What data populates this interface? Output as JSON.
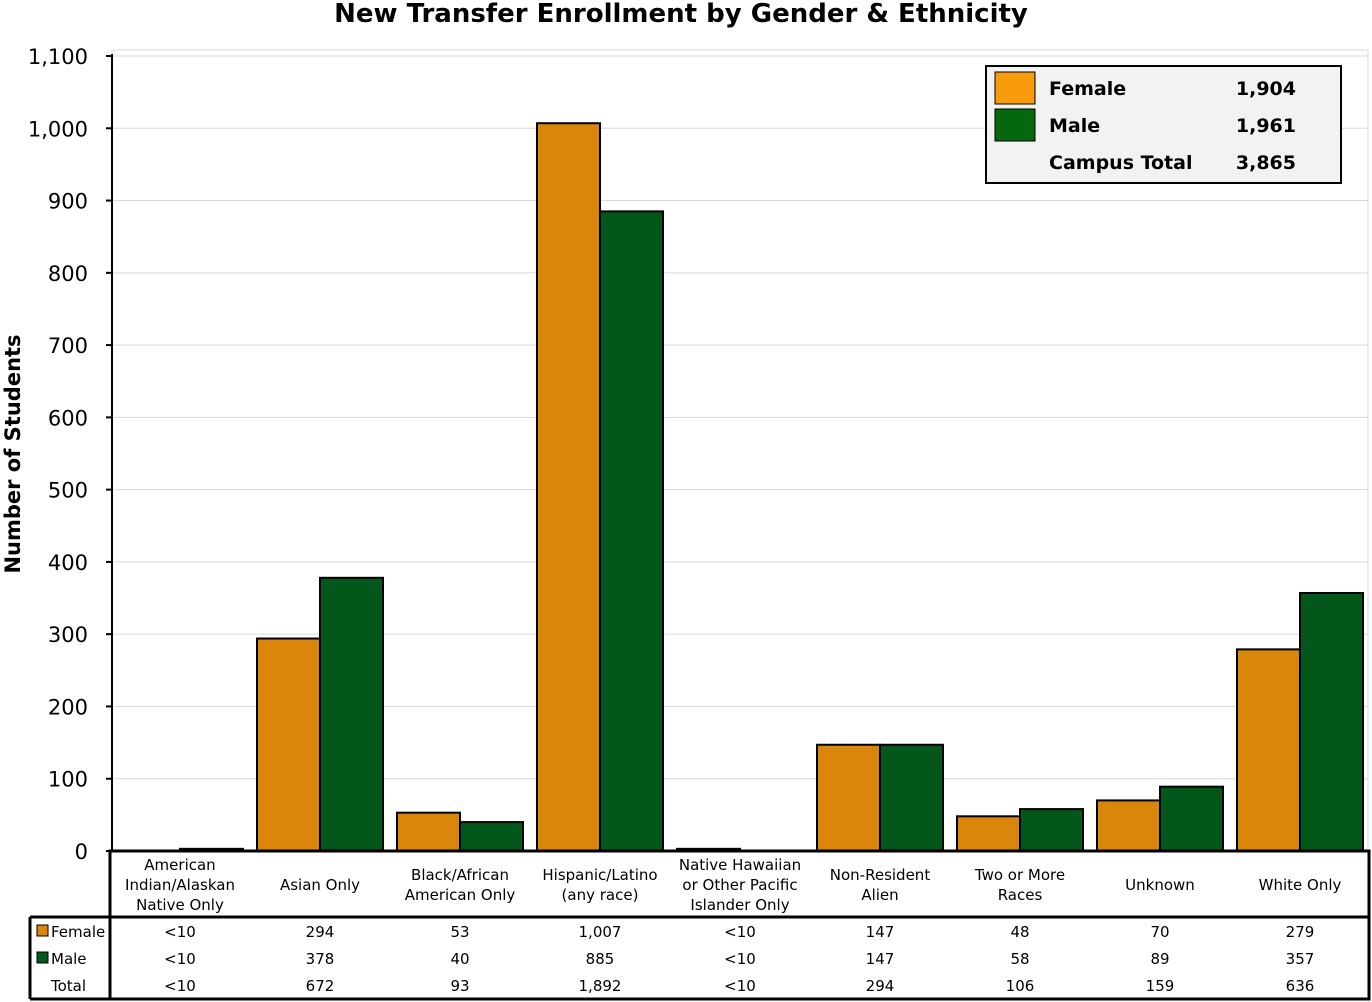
{
  "chart_data": {
    "type": "bar",
    "title": "New Transfer Enrollment by Gender & Ethnicity",
    "ylabel": "Number of Students",
    "xlabel": "",
    "ylim": [
      0,
      1100
    ],
    "yticks": [
      "0",
      "100",
      "200",
      "300",
      "400",
      "500",
      "600",
      "700",
      "800",
      "900",
      "1,000",
      "1,100"
    ],
    "grid": true,
    "legend_position": "top-right",
    "categories": [
      [
        "American",
        "Indian/Alaskan",
        "Native Only"
      ],
      [
        "Asian Only"
      ],
      [
        "Black/African",
        "American Only"
      ],
      [
        "Hispanic/Latino",
        "(any race)"
      ],
      [
        "Native Hawaiian",
        "or Other Pacific",
        "Islander Only"
      ],
      [
        "Non-Resident",
        "Alien"
      ],
      [
        "Two or More",
        "Races"
      ],
      [
        "Unknown"
      ],
      [
        "White Only"
      ]
    ],
    "series": [
      {
        "name": "Female",
        "color": "#D9860B",
        "values": [
          0,
          294,
          53,
          1007,
          3,
          147,
          48,
          70,
          279
        ],
        "labels": [
          "<10",
          "294",
          "53",
          "1,007",
          "<10",
          "147",
          "48",
          "70",
          "279"
        ]
      },
      {
        "name": "Male",
        "color": "#03571A",
        "values": [
          3,
          378,
          40,
          885,
          0,
          147,
          58,
          89,
          357
        ],
        "labels": [
          "<10",
          "378",
          "40",
          "885",
          "<10",
          "147",
          "58",
          "89",
          "357"
        ]
      }
    ],
    "totals": {
      "name": "Total",
      "labels": [
        "<10",
        "672",
        "93",
        "1,892",
        "<10",
        "294",
        "106",
        "159",
        "636"
      ]
    },
    "legend": [
      {
        "name": "Female",
        "color": "#F79A0B",
        "value": "1,904"
      },
      {
        "name": "Male",
        "color": "#05680F",
        "value": "1,961"
      },
      {
        "name": "Campus Total",
        "value": "3,865"
      }
    ]
  }
}
